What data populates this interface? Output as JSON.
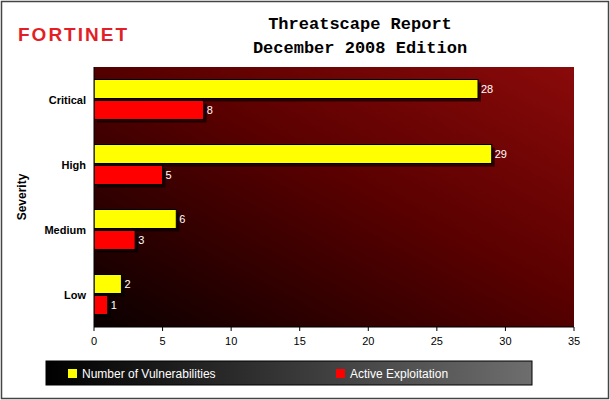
{
  "chart_data": {
    "type": "bar",
    "orientation": "horizontal",
    "title": "Threatscape Report",
    "subtitle": "December 2008 Edition",
    "annotations": [
      "FORTINET"
    ],
    "y_label": "Severity",
    "categories": [
      "Critical",
      "High",
      "Medium",
      "Low"
    ],
    "series": [
      {
        "name": "Number of Vulnerabilities",
        "color": "#ffff00",
        "values": [
          28,
          29,
          6,
          2
        ]
      },
      {
        "name": "Active Exploitation",
        "color": "#ff0000",
        "values": [
          8,
          5,
          3,
          1
        ]
      }
    ],
    "xlim": [
      0,
      35
    ],
    "xticks": [
      0,
      5,
      10,
      15,
      20,
      25,
      30,
      35
    ],
    "grid": false,
    "legend": "bottom",
    "data_labels": true
  }
}
